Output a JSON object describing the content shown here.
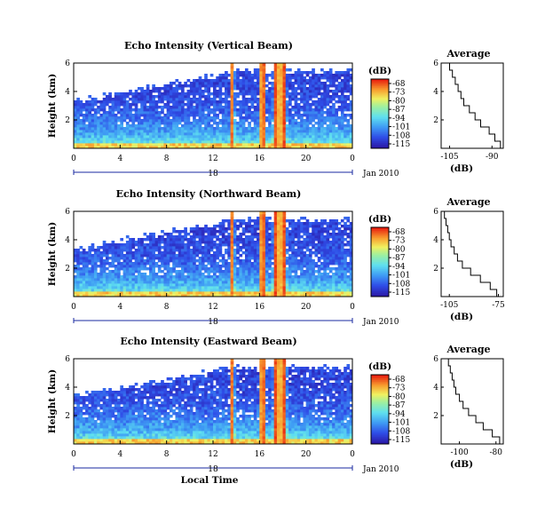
{
  "chart_data": [
    {
      "type": "heatmap",
      "title": "Echo Intensity (Vertical Beam)",
      "ylabel": "Height (km)",
      "y_ticks": [
        "2",
        "4",
        "6"
      ],
      "x_ticks": [
        "0",
        "4",
        "8",
        "12",
        "16",
        "20",
        "0"
      ],
      "date_day": "18",
      "date_label": "Jan 2010",
      "xlim": [
        0,
        24
      ],
      "ylim": [
        0,
        6
      ],
      "colorbar": {
        "unit": "(dB)",
        "ticks": [
          "-68",
          "-73",
          "-80",
          "-87",
          "-94",
          "-101",
          "-108",
          "-115"
        ],
        "range": [
          -115,
          -66
        ]
      },
      "rain_bands_hours": [
        13.7,
        16.3,
        17.4,
        18.1
      ],
      "profile": {
        "title": "Average",
        "xlabel": "(dB)",
        "x_ticks": [
          "-105",
          "-90"
        ],
        "y_ticks": [
          "2",
          "4",
          "6"
        ],
        "xlim": [
          -108,
          -86
        ],
        "height_km": [
          0,
          0.5,
          1,
          1.5,
          2,
          2.5,
          3,
          3.5,
          4,
          4.5,
          5,
          5.5,
          6
        ],
        "value_db": [
          -87,
          -89,
          -91,
          -94,
          -96,
          -98,
          -100,
          -101,
          -102,
          -103,
          -104,
          -105,
          -106
        ]
      }
    },
    {
      "type": "heatmap",
      "title": "Echo Intensity (Northward Beam)",
      "ylabel": "Height (km)",
      "y_ticks": [
        "2",
        "4",
        "6"
      ],
      "x_ticks": [
        "0",
        "4",
        "8",
        "12",
        "16",
        "20",
        "0"
      ],
      "date_day": "18",
      "date_label": "Jan 2010",
      "xlim": [
        0,
        24
      ],
      "ylim": [
        0,
        6
      ],
      "colorbar": {
        "unit": "(dB)",
        "ticks": [
          "-68",
          "-73",
          "-80",
          "-87",
          "-94",
          "-101",
          "-108",
          "-115"
        ],
        "range": [
          -115,
          -66
        ]
      },
      "rain_bands_hours": [
        13.7,
        16.3,
        17.4,
        18.1
      ],
      "profile": {
        "title": "Average",
        "xlabel": "(dB)",
        "x_ticks": [
          "-105",
          "-75"
        ],
        "y_ticks": [
          "2",
          "4",
          "6"
        ],
        "xlim": [
          -110,
          -72
        ],
        "height_km": [
          0,
          0.5,
          1,
          1.5,
          2,
          2.5,
          3,
          3.5,
          4,
          4.5,
          5,
          5.5,
          6
        ],
        "value_db": [
          -76,
          -80,
          -86,
          -92,
          -97,
          -100,
          -102,
          -104,
          -105,
          -106,
          -107,
          -108,
          -109
        ]
      }
    },
    {
      "type": "heatmap",
      "title": "Echo Intensity (Eastward Beam)",
      "ylabel": "Height (km)",
      "y_ticks": [
        "2",
        "4",
        "6"
      ],
      "x_ticks": [
        "0",
        "4",
        "8",
        "12",
        "16",
        "20",
        "0"
      ],
      "date_day": "18",
      "date_label": "Jan 2010",
      "xlabel": "Local Time",
      "xlim": [
        0,
        24
      ],
      "ylim": [
        0,
        6
      ],
      "colorbar": {
        "unit": "(dB)",
        "ticks": [
          "-68",
          "-73",
          "-80",
          "-87",
          "-94",
          "-101",
          "-108",
          "-115"
        ],
        "range": [
          -115,
          -66
        ]
      },
      "rain_bands_hours": [
        13.7,
        16.3,
        17.4,
        18.1
      ],
      "profile": {
        "title": "Average",
        "xlabel": "(dB)",
        "x_ticks": [
          "-100",
          "-80"
        ],
        "y_ticks": [
          "2",
          "4",
          "6"
        ],
        "xlim": [
          -110,
          -76
        ],
        "height_km": [
          0,
          0.5,
          1,
          1.5,
          2,
          2.5,
          3,
          3.5,
          4,
          4.5,
          5,
          5.5,
          6
        ],
        "value_db": [
          -78,
          -82,
          -87,
          -91,
          -95,
          -98,
          -100,
          -102,
          -103,
          -104,
          -105,
          -106,
          -107
        ]
      }
    }
  ]
}
